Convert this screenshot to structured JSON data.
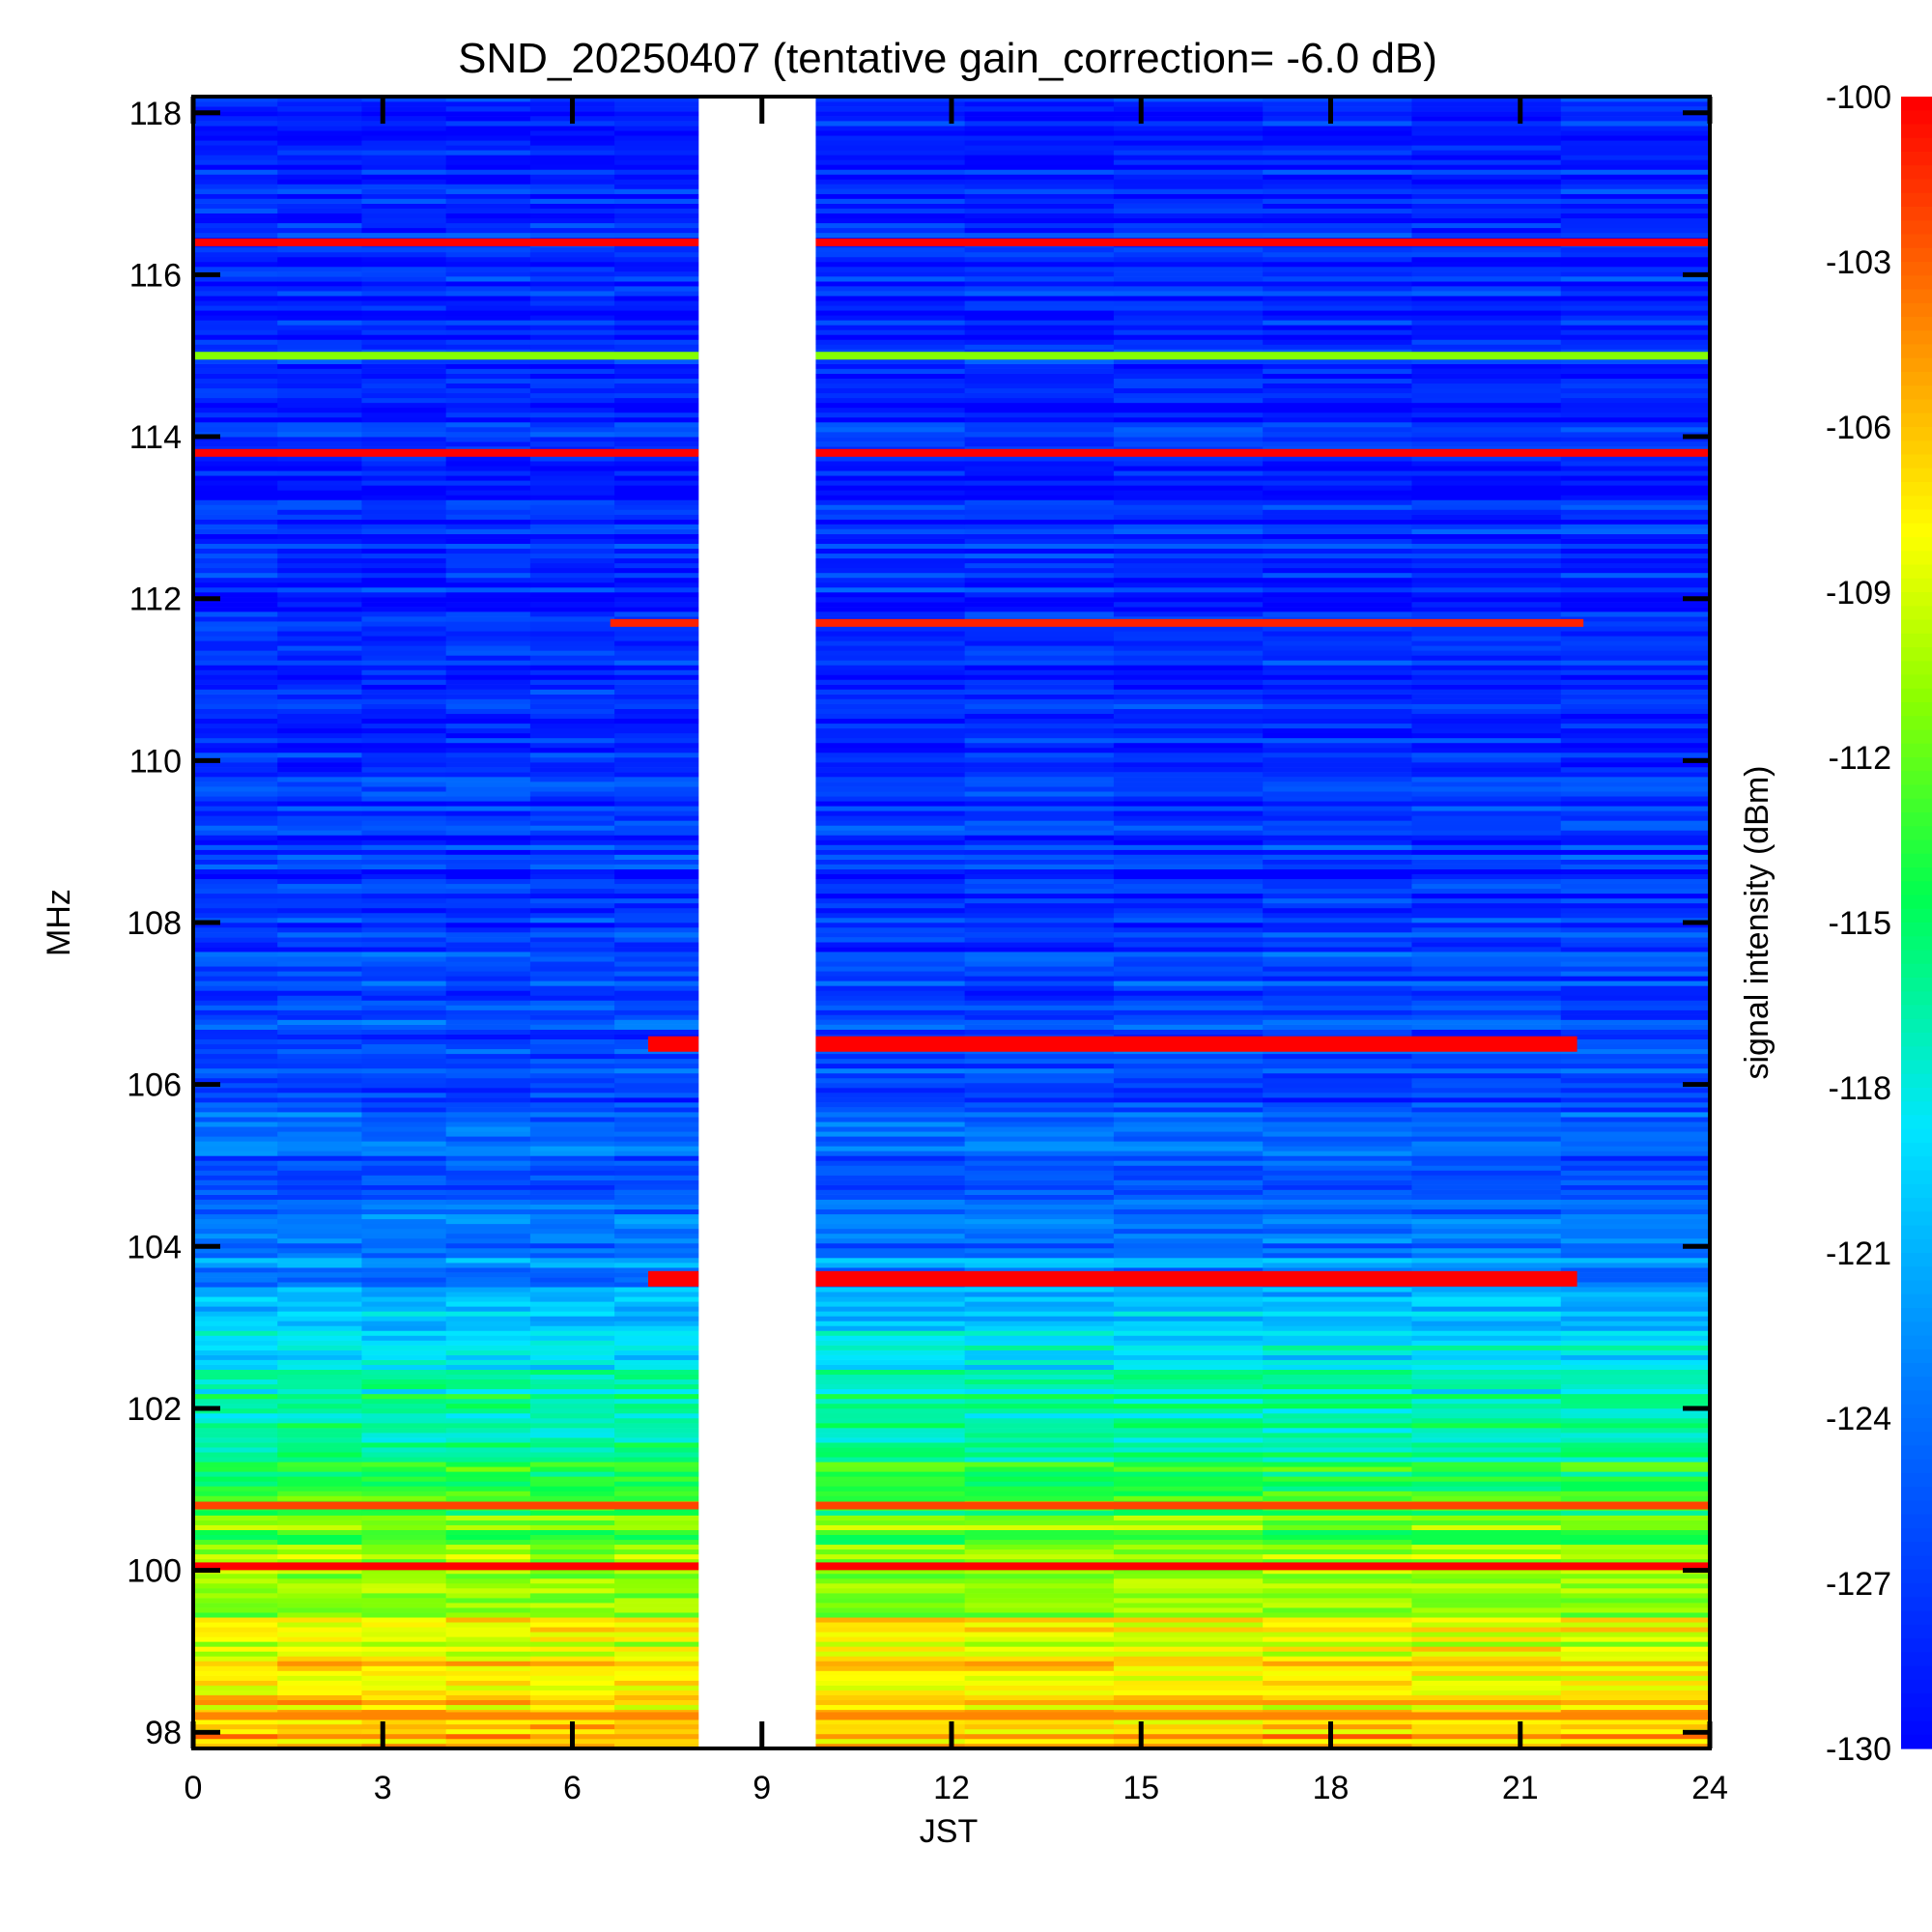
{
  "chart_data": {
    "type": "heatmap",
    "title": "SND_20250407 (tentative gain_correction= -6.0 dB)",
    "xlabel": "JST",
    "ylabel": "MHz",
    "colorbar_label": "signal intensity (dBm)",
    "xlim": [
      0,
      24
    ],
    "ylim": [
      97.8,
      118.2
    ],
    "x_ticks": [
      "0",
      "3",
      "6",
      "9",
      "12",
      "15",
      "18",
      "21",
      "24"
    ],
    "y_ticks": [
      "98",
      "100",
      "102",
      "104",
      "106",
      "108",
      "110",
      "112",
      "114",
      "116",
      "118"
    ],
    "colorbar_range": [
      -130,
      -100
    ],
    "colorbar_ticks": [
      "-100",
      "-103",
      "-106",
      "-109",
      "-112",
      "-115",
      "-118",
      "-121",
      "-124",
      "-127",
      "-130"
    ],
    "colormap": "rainbow (blue = -130 dBm to red = -100 dBm)",
    "data_gap_jst": [
      8.0,
      9.85
    ],
    "background_profile_dbm": [
      {
        "mhz": 98.0,
        "dbm": -106
      },
      {
        "mhz": 99.0,
        "dbm": -108
      },
      {
        "mhz": 100.0,
        "dbm": -111
      },
      {
        "mhz": 101.0,
        "dbm": -114
      },
      {
        "mhz": 102.0,
        "dbm": -116
      },
      {
        "mhz": 103.0,
        "dbm": -119
      },
      {
        "mhz": 104.0,
        "dbm": -124
      },
      {
        "mhz": 105.0,
        "dbm": -125
      },
      {
        "mhz": 106.0,
        "dbm": -126
      },
      {
        "mhz": 107.0,
        "dbm": -126
      },
      {
        "mhz": 108.0,
        "dbm": -127
      },
      {
        "mhz": 112.0,
        "dbm": -128
      },
      {
        "mhz": 118.0,
        "dbm": -128
      }
    ],
    "strong_lines": [
      {
        "mhz": 116.4,
        "dbm": -100,
        "jst": [
          0,
          24
        ]
      },
      {
        "mhz": 115.0,
        "dbm": -111,
        "jst": [
          0,
          24
        ]
      },
      {
        "mhz": 113.8,
        "dbm": -100,
        "jst": [
          0,
          24
        ]
      },
      {
        "mhz": 111.7,
        "dbm": -101,
        "jst": [
          6.6,
          22.0
        ]
      },
      {
        "mhz": 106.5,
        "dbm": -100,
        "jst": [
          7.2,
          21.9
        ]
      },
      {
        "mhz": 103.6,
        "dbm": -100,
        "jst": [
          7.2,
          21.9
        ]
      },
      {
        "mhz": 100.8,
        "dbm": -102,
        "jst": [
          0,
          24
        ]
      },
      {
        "mhz": 100.05,
        "dbm": -100,
        "jst": [
          0,
          24
        ]
      },
      {
        "mhz": 98.2,
        "dbm": -104,
        "jst": [
          0,
          24
        ]
      }
    ],
    "grid": false,
    "legend": "colorbar-right"
  },
  "colors": {
    "strong_signal": "#ff0000",
    "background": "#ffffff",
    "axis": "#000000"
  }
}
